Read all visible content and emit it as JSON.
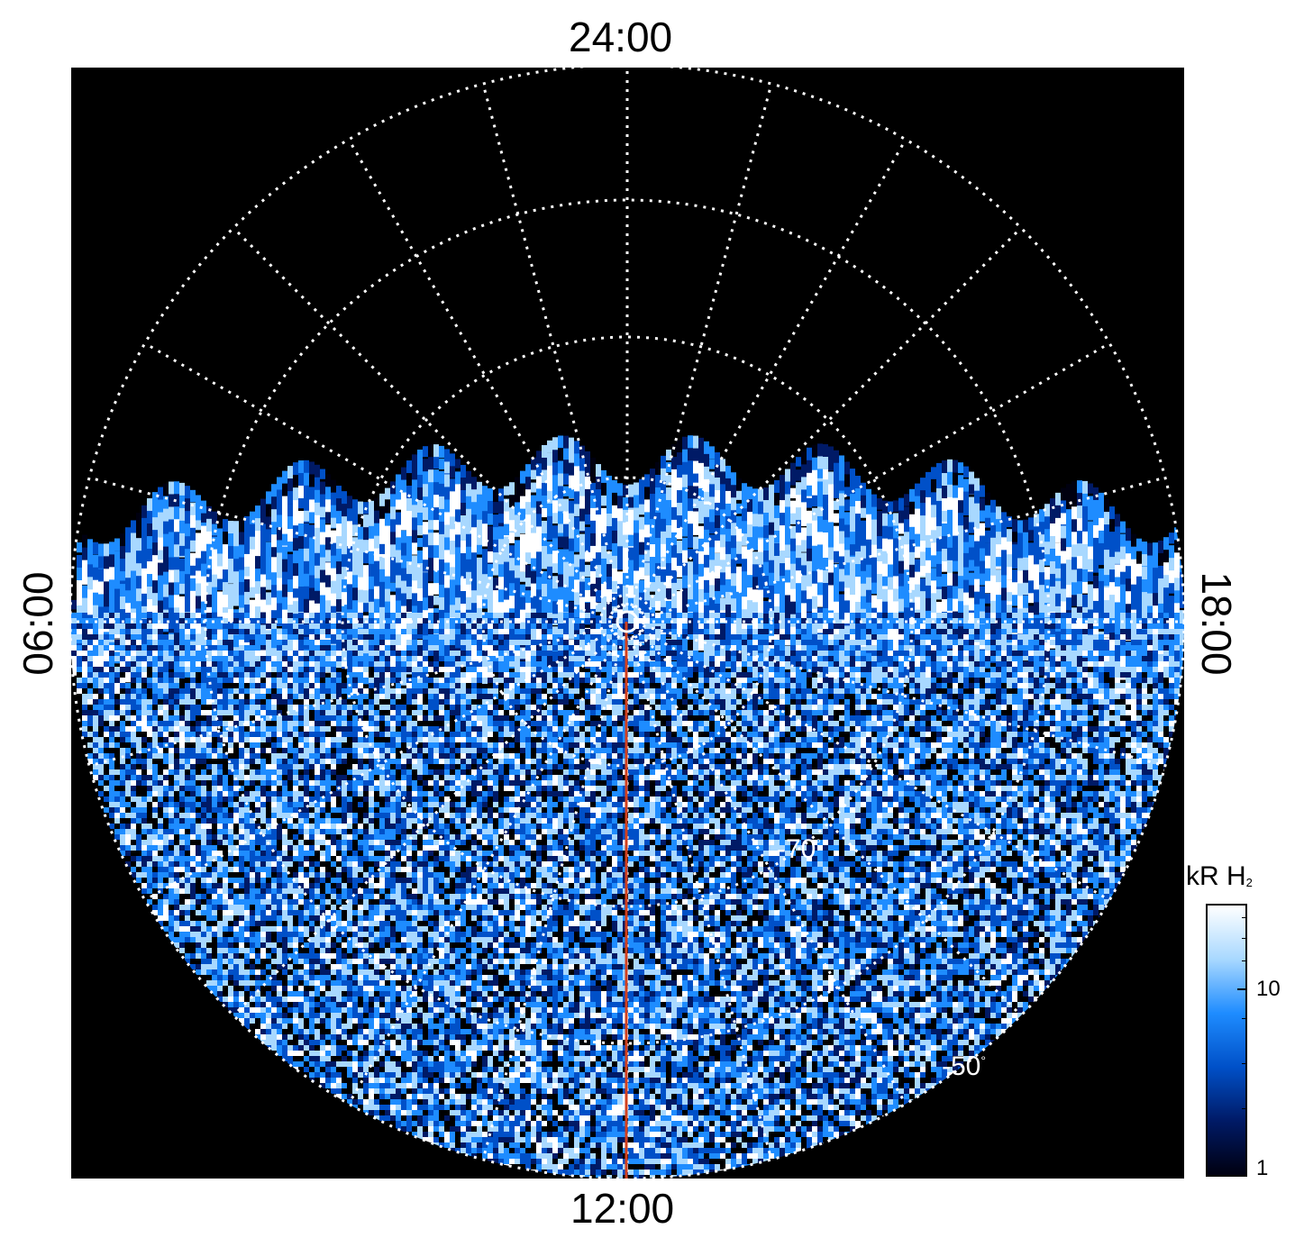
{
  "time_labels": {
    "top": "24:00",
    "bottom": "12:00",
    "left": "06:00",
    "right": "18:00"
  },
  "latitude_labels": [
    {
      "text": "-70",
      "unit": "°"
    },
    {
      "text": "-50",
      "unit": "°"
    }
  ],
  "colorbar": {
    "title_main": "kR H",
    "title_sub": "2",
    "ticks": [
      "10",
      "1"
    ],
    "colormap": [
      "#000010",
      "#001a66",
      "#0050c8",
      "#1e8cff",
      "#a8d8ff",
      "#ffffff"
    ]
  },
  "colors": {
    "background": "#000000",
    "grid": "#ffffff",
    "meridian_line": "#d2401e"
  }
}
